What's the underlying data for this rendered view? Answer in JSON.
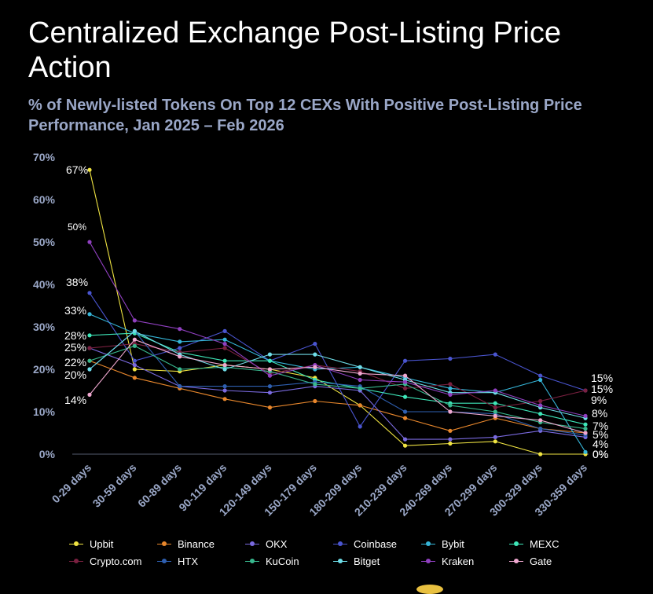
{
  "header": {
    "title": "Centralized Exchange Post-Listing Price Action",
    "subtitle": "% of Newly-listed Tokens On Top 12 CEXs With Positive Post-Listing Price Performance, Jan 2025 – Feb 2026"
  },
  "chart_data": {
    "type": "line",
    "title": "Centralized Exchange Post-Listing Price Action",
    "subtitle": "% of Newly-listed Tokens On Top 12 CEXs With Positive Post-Listing Price Performance, Jan 2025 – Feb 2026",
    "xlabel": "",
    "ylabel": "",
    "ylim": [
      0,
      70
    ],
    "grid": false,
    "legend_position": "bottom",
    "y_ticks": [
      "0%",
      "10%",
      "20%",
      "30%",
      "40%",
      "50%",
      "60%",
      "70%"
    ],
    "categories": [
      "0-29 days",
      "30-59 days",
      "60-89 days",
      "90-119 days",
      "120-149 days",
      "150-179 days",
      "180-209 days",
      "210-239 days",
      "240-269 days",
      "270-299 days",
      "300-329 days",
      "330-359 days"
    ],
    "series": [
      {
        "name": "Upbit",
        "color": "#f0e442",
        "values": [
          67,
          20,
          19.5,
          21,
          20,
          18,
          11.5,
          2,
          2.5,
          3,
          0,
          0
        ]
      },
      {
        "name": "Binance",
        "color": "#e8872c",
        "values": [
          22,
          18,
          15.5,
          13,
          11,
          12.5,
          11.5,
          8.5,
          5.5,
          8.5,
          6,
          5
        ]
      },
      {
        "name": "OKX",
        "color": "#7a6ae0",
        "values": [
          25,
          21,
          16,
          15,
          14.5,
          16,
          15,
          3.5,
          3.5,
          4,
          5.5,
          4
        ]
      },
      {
        "name": "Coinbase",
        "color": "#4a55d0",
        "values": [
          38,
          22,
          25,
          29,
          22,
          26,
          6.5,
          22,
          22.5,
          23.5,
          18.5,
          15
        ]
      },
      {
        "name": "Bybit",
        "color": "#35b5d8",
        "values": [
          33,
          28.5,
          26.5,
          27,
          22,
          20,
          20.5,
          18,
          15.5,
          14.5,
          17.5,
          0.5
        ]
      },
      {
        "name": "MEXC",
        "color": "#3ee6b8",
        "values": [
          28,
          28.5,
          24,
          22,
          22,
          17.5,
          15.5,
          13.5,
          12,
          12,
          9.5,
          7
        ]
      },
      {
        "name": "Crypto.com",
        "color": "#7a2040",
        "values": [
          25,
          26,
          24,
          25,
          19,
          21,
          19.5,
          15.5,
          16.5,
          11,
          12.5,
          15
        ]
      },
      {
        "name": "HTX",
        "color": "#2e5fb0",
        "values": [
          20,
          29,
          16,
          16,
          16,
          17,
          16,
          10,
          10,
          9.5,
          6,
          4.5
        ]
      },
      {
        "name": "KuCoin",
        "color": "#38b88e",
        "values": [
          22,
          25.5,
          20,
          20.5,
          19.5,
          16.5,
          15.5,
          16.5,
          11.5,
          10,
          7.5,
          6
        ]
      },
      {
        "name": "Bitget",
        "color": "#6fdde8",
        "values": [
          20,
          29,
          23.5,
          20,
          23.5,
          23.5,
          20.5,
          17.5,
          14.5,
          14.5,
          11,
          8.5
        ]
      },
      {
        "name": "Kraken",
        "color": "#9040c0",
        "values": [
          50,
          31.5,
          29.5,
          26,
          18.5,
          21,
          17.5,
          17,
          14,
          15,
          11.5,
          9
        ]
      },
      {
        "name": "Gate",
        "color": "#f0a8d0",
        "values": [
          14,
          27,
          23,
          21,
          20,
          20.5,
          19,
          18.5,
          10,
          9,
          8,
          5
        ]
      }
    ],
    "start_labels": [
      "67%",
      "50%",
      "38%",
      "33%",
      "28%",
      "25%",
      "22%",
      "20%",
      "14%"
    ],
    "end_labels": [
      "15%",
      "15%",
      "9%",
      "8%",
      "7%",
      "5%",
      "4%",
      "0%",
      "0%"
    ]
  }
}
